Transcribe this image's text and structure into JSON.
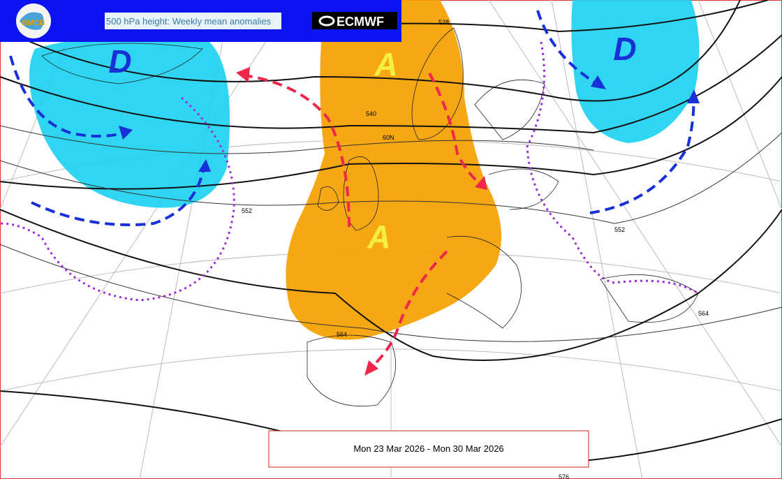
{
  "header": {
    "logo": "BMCB",
    "title": "500 hPa height: Weekly mean anomalies",
    "brand": "ECMWF"
  },
  "anomalies": [
    {
      "label": "D"
    },
    {
      "label": "A"
    },
    {
      "label": "A"
    },
    {
      "label": "D"
    }
  ],
  "contours": [
    "528",
    "540",
    "552",
    "552",
    "564",
    "564",
    "576"
  ],
  "latitude": "60N",
  "footer": {
    "period": "Mon 23 Mar 2026 - Mon 30 Mar 2026"
  }
}
